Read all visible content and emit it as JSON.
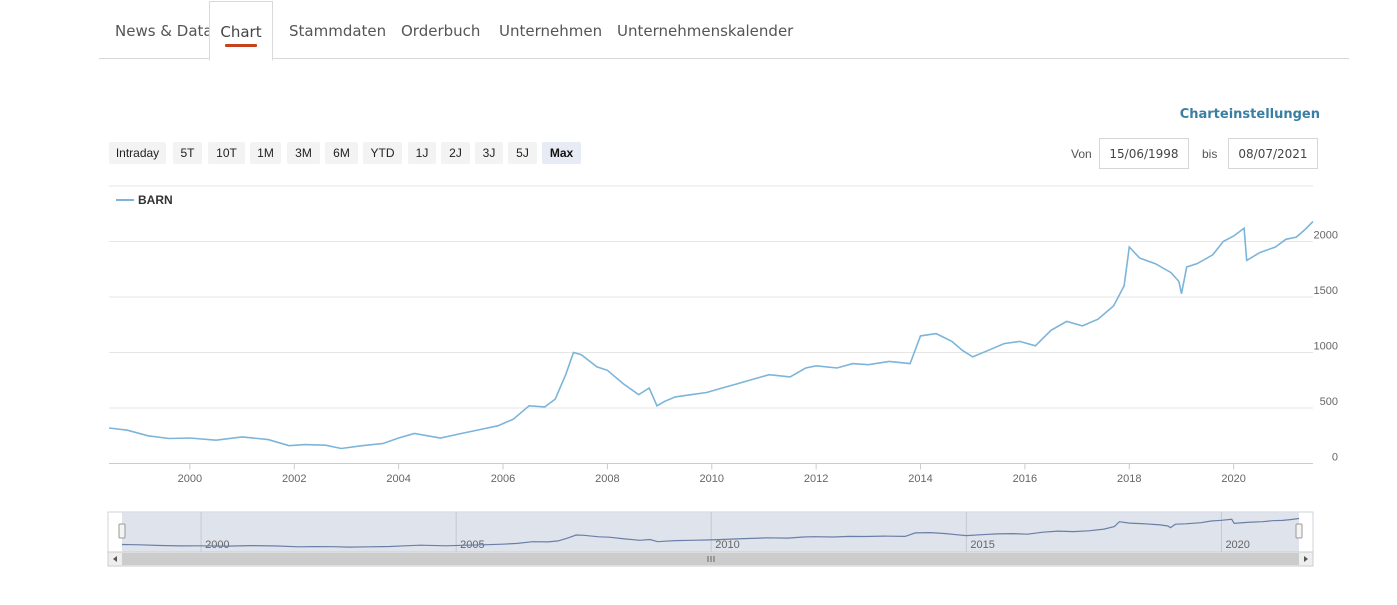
{
  "tabs": [
    {
      "label": "News & Data",
      "active": false
    },
    {
      "label": "Chart",
      "active": true
    },
    {
      "label": "Stammdaten",
      "active": false
    },
    {
      "label": "Orderbuch",
      "active": false
    },
    {
      "label": "Unternehmen",
      "active": false
    },
    {
      "label": "Unternehmenskalender",
      "active": false
    }
  ],
  "settings_link": "Charteinstellungen",
  "range_buttons": [
    {
      "label": "Intraday"
    },
    {
      "label": "5T"
    },
    {
      "label": "10T"
    },
    {
      "label": "1M"
    },
    {
      "label": "3M"
    },
    {
      "label": "6M"
    },
    {
      "label": "YTD"
    },
    {
      "label": "1J"
    },
    {
      "label": "2J"
    },
    {
      "label": "3J"
    },
    {
      "label": "5J"
    },
    {
      "label": "Max",
      "active": true
    }
  ],
  "date_range": {
    "from_label": "Von",
    "from_value": "15/06/1998",
    "to_label": "bis",
    "to_value": "08/07/2021"
  },
  "colors": {
    "line": "#7cb5d9",
    "navigator_line": "#6a7fa8",
    "active_tab_underline": "#c7421c"
  },
  "chart_data": {
    "type": "line",
    "title": "",
    "xlabel": "",
    "ylabel": "",
    "legend": {
      "placement": "top-left"
    },
    "x_ticks": [
      "2000",
      "2002",
      "2004",
      "2006",
      "2008",
      "2010",
      "2012",
      "2014",
      "2016",
      "2018",
      "2020"
    ],
    "y_ticks": [
      "0",
      "500",
      "1000",
      "1500",
      "2000"
    ],
    "ylim": [
      0,
      2500
    ],
    "xlim": [
      1998.45,
      2021.52
    ],
    "grid": true,
    "navigator_ticks": [
      "2000",
      "2005",
      "2010",
      "2015",
      "2020"
    ],
    "series": [
      {
        "name": "BARN",
        "x": [
          1998.45,
          1998.8,
          1999.2,
          1999.6,
          2000.0,
          2000.5,
          2001.0,
          2001.5,
          2001.9,
          2002.2,
          2002.6,
          2002.9,
          2003.3,
          2003.7,
          2004.0,
          2004.3,
          2004.8,
          2005.2,
          2005.6,
          2005.9,
          2006.2,
          2006.5,
          2006.8,
          2007.0,
          2007.2,
          2007.35,
          2007.5,
          2007.8,
          2008.0,
          2008.3,
          2008.6,
          2008.8,
          2008.95,
          2009.1,
          2009.3,
          2009.6,
          2009.9,
          2010.2,
          2010.5,
          2010.8,
          2011.1,
          2011.5,
          2011.8,
          2012.0,
          2012.4,
          2012.7,
          2013.0,
          2013.4,
          2013.8,
          2014.0,
          2014.3,
          2014.6,
          2014.8,
          2015.0,
          2015.3,
          2015.6,
          2015.9,
          2016.2,
          2016.5,
          2016.8,
          2017.1,
          2017.4,
          2017.7,
          2017.9,
          2018.0,
          2018.2,
          2018.5,
          2018.8,
          2018.95,
          2019.0,
          2019.1,
          2019.3,
          2019.6,
          2019.8,
          2020.0,
          2020.2,
          2020.25,
          2020.5,
          2020.8,
          2021.0,
          2021.2,
          2021.35,
          2021.52
        ],
        "values": [
          320,
          300,
          250,
          225,
          230,
          210,
          240,
          215,
          160,
          170,
          165,
          135,
          160,
          180,
          230,
          270,
          230,
          270,
          310,
          340,
          400,
          520,
          510,
          580,
          800,
          1000,
          980,
          870,
          840,
          720,
          620,
          680,
          520,
          560,
          600,
          620,
          640,
          680,
          720,
          760,
          800,
          780,
          860,
          880,
          860,
          900,
          890,
          920,
          900,
          1150,
          1170,
          1100,
          1020,
          960,
          1020,
          1080,
          1100,
          1060,
          1200,
          1280,
          1240,
          1300,
          1420,
          1600,
          1950,
          1850,
          1800,
          1720,
          1640,
          1530,
          1770,
          1800,
          1880,
          2000,
          2050,
          2120,
          1830,
          1900,
          1950,
          2020,
          2040,
          2100,
          2180
        ]
      }
    ]
  }
}
